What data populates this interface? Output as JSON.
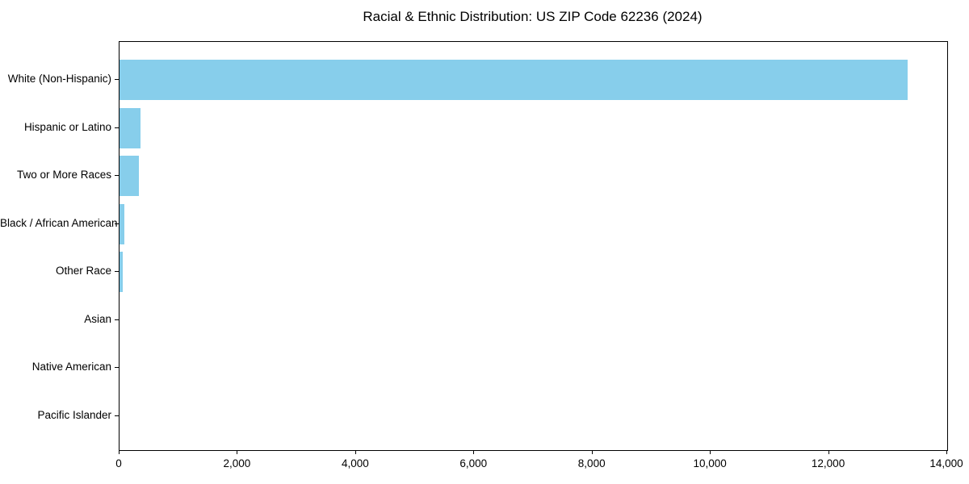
{
  "chart_data": {
    "type": "bar",
    "orientation": "horizontal",
    "title": "Racial & Ethnic Distribution: US ZIP Code 62236 (2024)",
    "categories": [
      "White (Non-Hispanic)",
      "Hispanic or Latino",
      "Two or More Races",
      "Black / African American",
      "Other Race",
      "Asian",
      "Native American",
      "Pacific Islander"
    ],
    "values": [
      13330,
      355,
      330,
      80,
      55,
      0,
      0,
      0
    ],
    "xlabel": "",
    "ylabel": "",
    "xlim": [
      0,
      14000
    ],
    "x_ticks": [
      0,
      2000,
      4000,
      6000,
      8000,
      10000,
      12000,
      14000
    ],
    "x_tick_labels": [
      "0",
      "2,000",
      "4,000",
      "6,000",
      "8,000",
      "10,000",
      "12,000",
      "14,000"
    ],
    "bar_color": "#87CEEB",
    "grid": false,
    "legend": "none",
    "plot_background": "#ffffff"
  }
}
